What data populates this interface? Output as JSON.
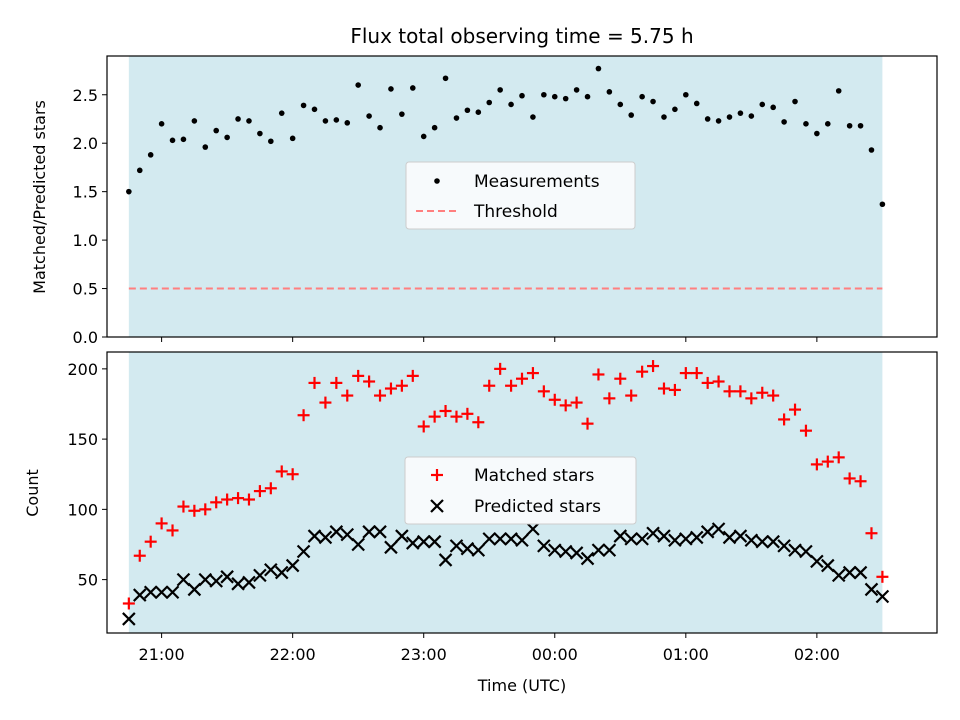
{
  "chart_data": [
    {
      "type": "scatter",
      "title": "Flux total observing time = 5.75 h",
      "xlabel": "",
      "ylabel": "Matched/Predicted stars",
      "xlim": [
        "20:35",
        "02:55"
      ],
      "ylim": [
        0,
        2.9
      ],
      "yticks": [
        0.0,
        0.5,
        1.0,
        1.5,
        2.0,
        2.5
      ],
      "ytick_labels": [
        "0.0",
        "0.5",
        "1.0",
        "1.5",
        "2.0",
        "2.5"
      ],
      "shaded_span": [
        "20:45",
        "02:30"
      ],
      "grid": false,
      "legend_position": "center",
      "series": [
        {
          "name": "Measurements",
          "marker": "dot",
          "color": "#000000",
          "x": [
            "20:45",
            "20:50",
            "20:55",
            "21:00",
            "21:05",
            "21:10",
            "21:15",
            "21:20",
            "21:25",
            "21:30",
            "21:35",
            "21:40",
            "21:45",
            "21:50",
            "21:55",
            "22:00",
            "22:05",
            "22:10",
            "22:15",
            "22:20",
            "22:25",
            "22:30",
            "22:35",
            "22:40",
            "22:45",
            "22:50",
            "22:55",
            "23:00",
            "23:05",
            "23:10",
            "23:15",
            "23:20",
            "23:25",
            "23:30",
            "23:35",
            "23:40",
            "23:45",
            "23:50",
            "23:55",
            "00:00",
            "00:05",
            "00:10",
            "00:15",
            "00:20",
            "00:25",
            "00:30",
            "00:35",
            "00:40",
            "00:45",
            "00:50",
            "00:55",
            "01:00",
            "01:05",
            "01:10",
            "01:15",
            "01:20",
            "01:25",
            "01:30",
            "01:35",
            "01:40",
            "01:45",
            "01:50",
            "01:55",
            "02:00",
            "02:05",
            "02:10",
            "02:15",
            "02:20",
            "02:25",
            "02:30"
          ],
          "y": [
            1.5,
            1.72,
            1.88,
            2.2,
            2.03,
            2.04,
            2.23,
            1.96,
            2.13,
            2.06,
            2.25,
            2.23,
            2.1,
            2.02,
            2.31,
            2.05,
            2.39,
            2.35,
            2.23,
            2.24,
            2.21,
            2.6,
            2.28,
            2.16,
            2.56,
            2.3,
            2.57,
            2.07,
            2.16,
            2.67,
            2.26,
            2.34,
            2.32,
            2.42,
            2.55,
            2.4,
            2.49,
            2.27,
            2.5,
            2.48,
            2.46,
            2.55,
            2.48,
            2.77,
            2.53,
            2.4,
            2.29,
            2.48,
            2.43,
            2.27,
            2.35,
            2.5,
            2.41,
            2.25,
            2.23,
            2.27,
            2.31,
            2.28,
            2.4,
            2.37,
            2.22,
            2.43,
            2.2,
            2.1,
            2.2,
            2.54,
            2.18,
            2.18,
            1.93,
            1.37
          ]
        },
        {
          "name": "Threshold",
          "marker": "dashed-line",
          "color": "#ff7f7f",
          "y_constant": 0.5
        }
      ]
    },
    {
      "type": "scatter",
      "title": "",
      "xlabel": "Time (UTC)",
      "ylabel": "Count",
      "xlim": [
        "20:35",
        "02:55"
      ],
      "ylim": [
        12,
        212
      ],
      "yticks": [
        50,
        100,
        150,
        200
      ],
      "ytick_labels": [
        "50",
        "100",
        "150",
        "200"
      ],
      "xticks": [
        "21:00",
        "22:00",
        "23:00",
        "00:00",
        "01:00",
        "02:00"
      ],
      "xtick_labels": [
        "21:00",
        "22:00",
        "23:00",
        "00:00",
        "01:00",
        "02:00"
      ],
      "shaded_span": [
        "20:45",
        "02:30"
      ],
      "grid": false,
      "legend_position": "center",
      "series": [
        {
          "name": "Matched stars",
          "marker": "plus",
          "color": "#ff0000",
          "x": [
            "20:45",
            "20:50",
            "20:55",
            "21:00",
            "21:05",
            "21:10",
            "21:15",
            "21:20",
            "21:25",
            "21:30",
            "21:35",
            "21:40",
            "21:45",
            "21:50",
            "21:55",
            "22:00",
            "22:05",
            "22:10",
            "22:15",
            "22:20",
            "22:25",
            "22:30",
            "22:35",
            "22:40",
            "22:45",
            "22:50",
            "22:55",
            "23:00",
            "23:05",
            "23:10",
            "23:15",
            "23:20",
            "23:25",
            "23:30",
            "23:35",
            "23:40",
            "23:45",
            "23:50",
            "23:55",
            "00:00",
            "00:05",
            "00:10",
            "00:15",
            "00:20",
            "00:25",
            "00:30",
            "00:35",
            "00:40",
            "00:45",
            "00:50",
            "00:55",
            "01:00",
            "01:05",
            "01:10",
            "01:15",
            "01:20",
            "01:25",
            "01:30",
            "01:35",
            "01:40",
            "01:45",
            "01:50",
            "01:55",
            "02:00",
            "02:05",
            "02:10",
            "02:15",
            "02:20",
            "02:25",
            "02:30"
          ],
          "y": [
            33,
            67,
            77,
            90,
            85,
            102,
            99,
            100,
            105,
            107,
            108,
            107,
            113,
            115,
            127,
            125,
            167,
            190,
            176,
            190,
            181,
            195,
            191,
            181,
            186,
            188,
            195,
            159,
            166,
            170,
            166,
            168,
            162,
            188,
            200,
            188,
            193,
            197,
            184,
            178,
            174,
            176,
            161,
            196,
            179,
            193,
            181,
            198,
            202,
            186,
            185,
            197,
            197,
            190,
            191,
            184,
            184,
            179,
            183,
            181,
            164,
            171,
            156,
            132,
            134,
            137,
            122,
            120,
            83,
            52
          ]
        },
        {
          "name": "Predicted stars",
          "marker": "x",
          "color": "#000000",
          "x": [
            "20:45",
            "20:50",
            "20:55",
            "21:00",
            "21:05",
            "21:10",
            "21:15",
            "21:20",
            "21:25",
            "21:30",
            "21:35",
            "21:40",
            "21:45",
            "21:50",
            "21:55",
            "22:00",
            "22:05",
            "22:10",
            "22:15",
            "22:20",
            "22:25",
            "22:30",
            "22:35",
            "22:40",
            "22:45",
            "22:50",
            "22:55",
            "23:00",
            "23:05",
            "23:10",
            "23:15",
            "23:20",
            "23:25",
            "23:30",
            "23:35",
            "23:40",
            "23:45",
            "23:50",
            "23:55",
            "00:00",
            "00:05",
            "00:10",
            "00:15",
            "00:20",
            "00:25",
            "00:30",
            "00:35",
            "00:40",
            "00:45",
            "00:50",
            "00:55",
            "01:00",
            "01:05",
            "01:10",
            "01:15",
            "01:20",
            "01:25",
            "01:30",
            "01:35",
            "01:40",
            "01:45",
            "01:50",
            "01:55",
            "02:00",
            "02:05",
            "02:10",
            "02:15",
            "02:20",
            "02:25",
            "02:30"
          ],
          "y": [
            22,
            39,
            41,
            41,
            41,
            50,
            43,
            50,
            49,
            52,
            47,
            48,
            53,
            57,
            55,
            60,
            70,
            81,
            80,
            84,
            82,
            75,
            84,
            84,
            73,
            81,
            76,
            77,
            77,
            64,
            74,
            72,
            71,
            79,
            79,
            79,
            78,
            86,
            74,
            71,
            70,
            69,
            65,
            71,
            71,
            81,
            79,
            79,
            83,
            81,
            78,
            79,
            80,
            84,
            86,
            80,
            81,
            78,
            77,
            77,
            74,
            71,
            70,
            63,
            60,
            53,
            55,
            55,
            43,
            38
          ]
        }
      ]
    }
  ],
  "colors": {
    "shade": "#d3eaf0",
    "axes": "#000000",
    "legend_bg": "#f7fafc",
    "legend_border": "#cccccc"
  }
}
